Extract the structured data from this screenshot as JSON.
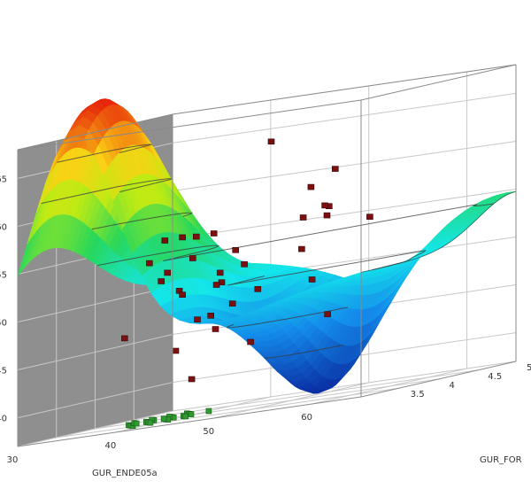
{
  "chart_data": {
    "type": "scatter",
    "subtype": "3d-surface-with-scatter",
    "title": "",
    "xlabel": "GUR_ENDE05a",
    "ylabel": "GUR_FOR",
    "zlabel": "",
    "x_ticks": [
      "60",
      "50",
      "40",
      "30"
    ],
    "y_ticks": [
      "3.5",
      "4",
      "4.5",
      "5"
    ],
    "z_ticks": [
      "40",
      "45",
      "50",
      "55",
      "60",
      "65"
    ],
    "xlim": [
      30,
      65
    ],
    "ylim": [
      3,
      5
    ],
    "zlim": [
      37,
      68
    ],
    "grid": true,
    "colors": {
      "observed_points": "#7a1010",
      "projected_points": "#2f9a2f",
      "back_wall_left": "#8f8f8f",
      "surface_low": "#0a2aa0",
      "surface_high": "#e61a0a"
    },
    "observed_points": [
      {
        "x": 60,
        "y": 3.2,
        "z": 46
      },
      {
        "x": 60,
        "y": 3.0,
        "z": 50
      },
      {
        "x": 60,
        "y": 3.3,
        "z": 61
      },
      {
        "x": 57,
        "y": 3.6,
        "z": 57
      },
      {
        "x": 56,
        "y": 3.7,
        "z": 56
      },
      {
        "x": 55,
        "y": 3.5,
        "z": 53
      },
      {
        "x": 55,
        "y": 3.8,
        "z": 57
      },
      {
        "x": 52,
        "y": 3.9,
        "z": 56
      },
      {
        "x": 52,
        "y": 4.0,
        "z": 59
      },
      {
        "x": 50,
        "y": 3.1,
        "z": 51
      },
      {
        "x": 49,
        "y": 3.6,
        "z": 44
      },
      {
        "x": 47,
        "y": 3.4,
        "z": 46
      },
      {
        "x": 46,
        "y": 3.9,
        "z": 52
      },
      {
        "x": 45,
        "y": 4.2,
        "z": 49
      },
      {
        "x": 44,
        "y": 4.5,
        "z": 64
      },
      {
        "x": 44,
        "y": 4.0,
        "z": 48
      },
      {
        "x": 43,
        "y": 3.6,
        "z": 41
      },
      {
        "x": 42,
        "y": 3.8,
        "z": 47
      },
      {
        "x": 41,
        "y": 4.1,
        "z": 47
      },
      {
        "x": 40,
        "y": 4.3,
        "z": 50
      },
      {
        "x": 39,
        "y": 3.9,
        "z": 44
      },
      {
        "x": 38,
        "y": 4.6,
        "z": 51
      },
      {
        "x": 37,
        "y": 4.2,
        "z": 50
      },
      {
        "x": 36,
        "y": 4.5,
        "z": 53
      },
      {
        "x": 35,
        "y": 4.3,
        "z": 52
      },
      {
        "x": 34,
        "y": 4.8,
        "z": 55
      },
      {
        "x": 33,
        "y": 4.0,
        "z": 46
      },
      {
        "x": 32,
        "y": 4.6,
        "z": 51
      },
      {
        "x": 31,
        "y": 5.0,
        "z": 55
      },
      {
        "x": 30,
        "y": 4.9,
        "z": 55
      },
      {
        "x": 30,
        "y": 4.7,
        "z": 53
      },
      {
        "x": 31,
        "y": 5.0,
        "z": 49
      },
      {
        "x": 35,
        "y": 4.9,
        "z": 55
      },
      {
        "x": 38,
        "y": 4.8,
        "z": 53
      },
      {
        "x": 58,
        "y": 4.0,
        "z": 55
      }
    ],
    "projected_points": [
      {
        "x": 36,
        "y": 4.0
      },
      {
        "x": 37,
        "y": 4.1
      },
      {
        "x": 38,
        "y": 4.0
      },
      {
        "x": 36,
        "y": 3.9
      },
      {
        "x": 37,
        "y": 3.8
      },
      {
        "x": 38,
        "y": 3.9
      },
      {
        "x": 39,
        "y": 4.0
      },
      {
        "x": 35,
        "y": 4.1
      },
      {
        "x": 36,
        "y": 4.2
      },
      {
        "x": 37,
        "y": 4.3
      },
      {
        "x": 38,
        "y": 4.2
      },
      {
        "x": 39,
        "y": 4.1
      },
      {
        "x": 35,
        "y": 3.8
      },
      {
        "x": 36,
        "y": 3.7
      },
      {
        "x": 37,
        "y": 3.6
      },
      {
        "x": 38,
        "y": 3.7
      },
      {
        "x": 39,
        "y": 3.8
      },
      {
        "x": 40,
        "y": 3.9
      },
      {
        "x": 34,
        "y": 4.0
      },
      {
        "x": 35,
        "y": 3.9
      },
      {
        "x": 40,
        "y": 4.2
      },
      {
        "x": 37,
        "y": 4.0
      }
    ],
    "contour_levels": [
      42,
      46,
      50,
      54,
      58,
      62,
      66
    ]
  }
}
